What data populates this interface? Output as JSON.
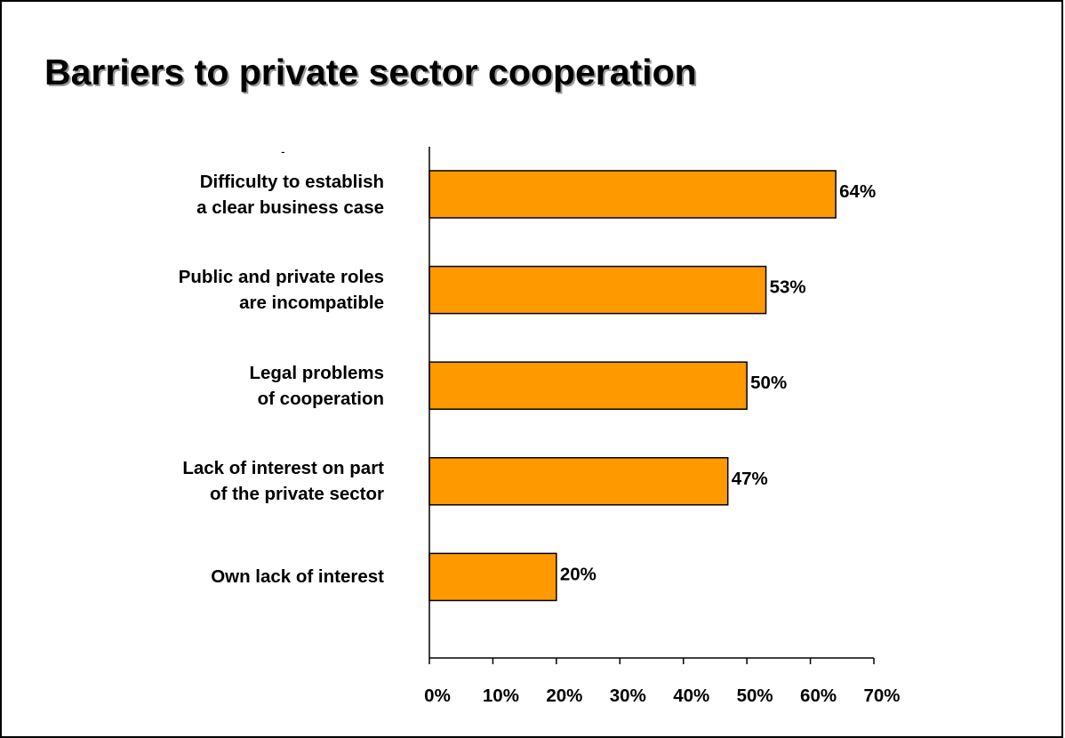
{
  "title": "Barriers to private sector cooperation",
  "stray_mark": "-",
  "chart_data": {
    "type": "bar",
    "orientation": "horizontal",
    "categories": [
      [
        "Difficulty to establish",
        "a clear business case"
      ],
      [
        "Public and private roles",
        "are incompatible"
      ],
      [
        "Legal problems",
        "of cooperation"
      ],
      [
        "Lack of interest on part",
        "of the private sector"
      ],
      [
        "Own lack of interest"
      ]
    ],
    "values": [
      64,
      53,
      50,
      47,
      20
    ],
    "data_labels": [
      "64%",
      "53%",
      "50%",
      "47%",
      "20%"
    ],
    "xlim": [
      0,
      70
    ],
    "xticks": [
      0,
      10,
      20,
      30,
      40,
      50,
      60,
      70
    ],
    "xtick_labels": [
      "0%",
      "10%",
      "20%",
      "30%",
      "40%",
      "50%",
      "60%",
      "70%"
    ],
    "bar_color": "#FF9900",
    "bar_edge_color": "#000000",
    "grid": false,
    "legend": "none"
  }
}
